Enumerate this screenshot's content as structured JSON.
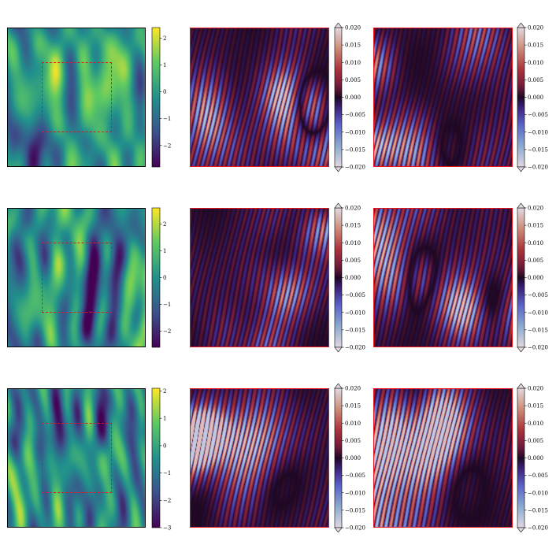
{
  "chart_data": [
    {
      "type": "heatmap",
      "row": 0,
      "kind": "field",
      "colormap": "viridis",
      "seed": 11,
      "crop_box": true,
      "colorbar": {
        "ticks": [
          2,
          1,
          0,
          -1,
          -2
        ],
        "tick_labels": [
          "2",
          "1",
          "0",
          "−1",
          "−2"
        ],
        "range": [
          -2.8,
          2.4
        ]
      }
    },
    {
      "type": "heatmap",
      "row": 0,
      "kind": "wave",
      "colormap": "twilight",
      "seed": 12,
      "colorbar": {
        "extend": "both",
        "ticks": [
          0.02,
          0.015,
          0.01,
          0.005,
          0,
          -0.005,
          -0.01,
          -0.015,
          -0.02
        ],
        "tick_labels": [
          "0.020",
          "0.015",
          "0.010",
          "0.005",
          "0.000",
          "−0.005",
          "−0.010",
          "−0.015",
          "−0.020"
        ],
        "range": [
          -0.02,
          0.02
        ]
      }
    },
    {
      "type": "heatmap",
      "row": 0,
      "kind": "wave",
      "colormap": "twilight",
      "seed": 13,
      "colorbar": {
        "extend": "both",
        "ticks": [
          0.02,
          0.015,
          0.01,
          0.005,
          0,
          -0.005,
          -0.01,
          -0.015,
          -0.02
        ],
        "tick_labels": [
          "0.020",
          "0.015",
          "0.010",
          "0.005",
          "0.000",
          "−0.005",
          "−0.010",
          "−0.015",
          "−0.020"
        ],
        "range": [
          -0.02,
          0.02
        ]
      }
    },
    {
      "type": "heatmap",
      "row": 1,
      "kind": "field",
      "colormap": "viridis",
      "seed": 21,
      "crop_box": true,
      "colorbar": {
        "ticks": [
          2,
          1,
          0,
          -1,
          -2
        ],
        "tick_labels": [
          "2",
          "1",
          "0",
          "−1",
          "−2"
        ],
        "range": [
          -2.6,
          2.6
        ]
      }
    },
    {
      "type": "heatmap",
      "row": 1,
      "kind": "wave",
      "colormap": "twilight",
      "seed": 22,
      "colorbar": {
        "extend": "both",
        "ticks": [
          0.02,
          0.015,
          0.01,
          0.005,
          0,
          -0.005,
          -0.01,
          -0.015,
          -0.02
        ],
        "tick_labels": [
          "0.020",
          "0.015",
          "0.010",
          "0.005",
          "0.000",
          "−0.005",
          "−0.010",
          "−0.015",
          "−0.020"
        ],
        "range": [
          -0.02,
          0.02
        ]
      }
    },
    {
      "type": "heatmap",
      "row": 1,
      "kind": "wave",
      "colormap": "twilight",
      "seed": 23,
      "colorbar": {
        "extend": "both",
        "ticks": [
          0.02,
          0.015,
          0.01,
          0.005,
          0,
          -0.005,
          -0.01,
          -0.015,
          -0.02
        ],
        "tick_labels": [
          "0.020",
          "0.015",
          "0.010",
          "0.005",
          "0.000",
          "−0.005",
          "−0.010",
          "−0.015",
          "−0.020"
        ],
        "range": [
          -0.02,
          0.02
        ]
      }
    },
    {
      "type": "heatmap",
      "row": 2,
      "kind": "field",
      "colormap": "viridis",
      "seed": 31,
      "crop_box": true,
      "colorbar": {
        "ticks": [
          2,
          1,
          0,
          -1,
          -2,
          -3
        ],
        "tick_labels": [
          "2",
          "1",
          "0",
          "−1",
          "−2",
          "−3"
        ],
        "range": [
          -3,
          2.1
        ]
      }
    },
    {
      "type": "heatmap",
      "row": 2,
      "kind": "wave",
      "colormap": "twilight",
      "seed": 32,
      "colorbar": {
        "extend": "both",
        "ticks": [
          0.02,
          0.015,
          0.01,
          0.005,
          0,
          -0.005,
          -0.01,
          -0.015,
          -0.02
        ],
        "tick_labels": [
          "0.020",
          "0.015",
          "0.010",
          "0.005",
          "0.000",
          "−0.005",
          "−0.010",
          "−0.015",
          "−0.020"
        ],
        "range": [
          -0.02,
          0.02
        ]
      }
    },
    {
      "type": "heatmap",
      "row": 2,
      "kind": "wave",
      "colormap": "twilight",
      "seed": 33,
      "colorbar": {
        "extend": "both",
        "ticks": [
          0.02,
          0.015,
          0.01,
          0.005,
          0,
          -0.005,
          -0.01,
          -0.015,
          -0.02
        ],
        "tick_labels": [
          "0.020",
          "0.015",
          "0.010",
          "0.005",
          "0.000",
          "−0.005",
          "−0.010",
          "−0.015",
          "−0.020"
        ],
        "range": [
          -0.02,
          0.02
        ]
      }
    }
  ]
}
